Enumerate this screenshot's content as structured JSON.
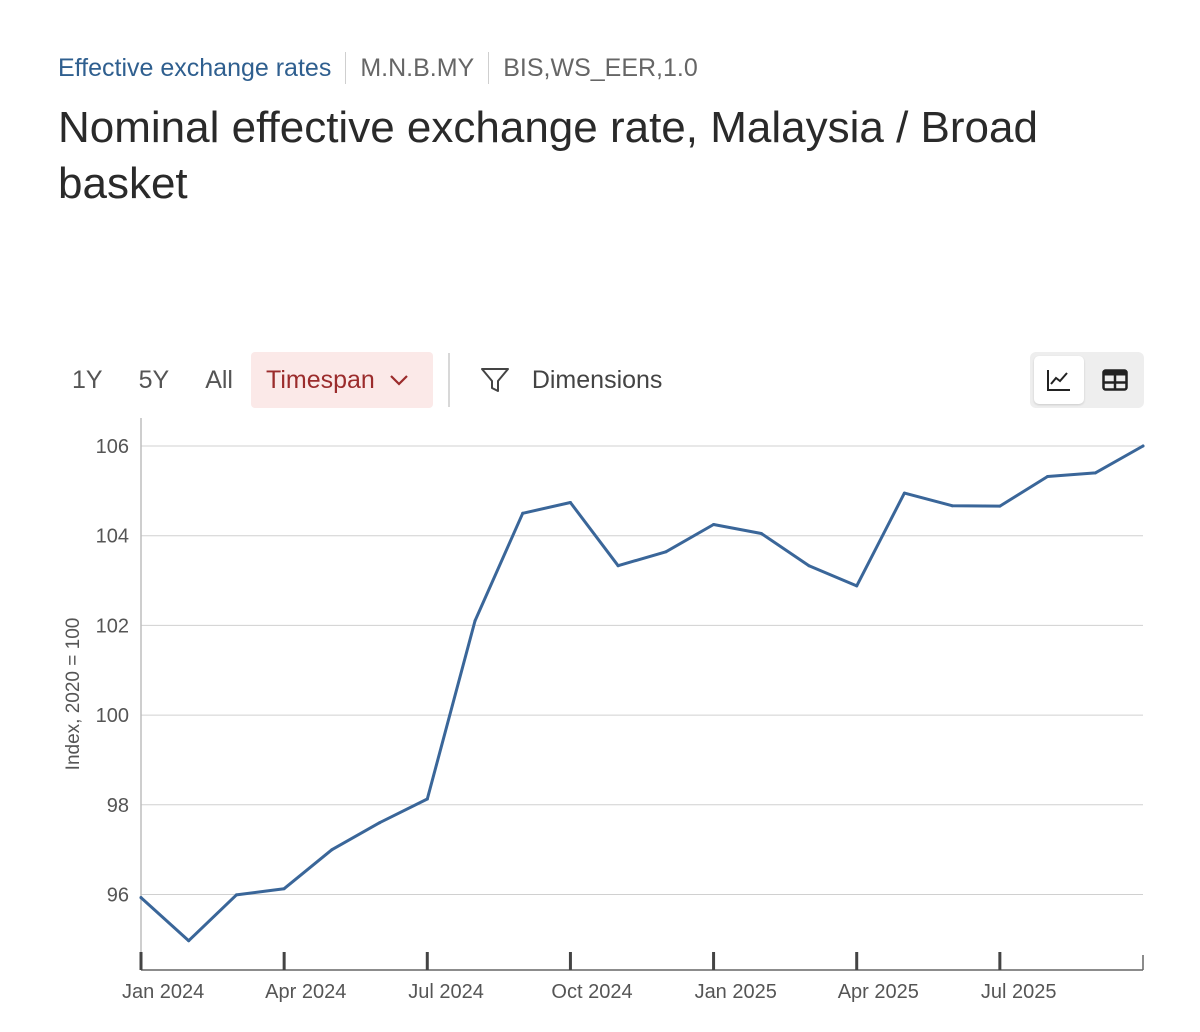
{
  "breadcrumb": {
    "dataset": "Effective exchange rates",
    "series_key": "M.N.B.MY",
    "dataflow": "BIS,WS_EER,1.0"
  },
  "title": "Nominal effective exchange rate, Malaysia / Broad basket",
  "toolbar": {
    "ranges": [
      "1Y",
      "5Y",
      "All"
    ],
    "timespan_label": "Timespan",
    "dimensions_label": "Dimensions",
    "active_view": "chart"
  },
  "icons": {
    "timespan": "chevron-down-icon",
    "dimensions": "filter-icon",
    "chart_view": "line-chart-icon",
    "table_view": "table-icon"
  },
  "colors": {
    "accent": "#2f5f8f",
    "line": "#3a6699",
    "timespan_bg": "#fbe9e8",
    "timespan_text": "#9b2c2c",
    "grid": "#d0d0d0"
  },
  "chart_data": {
    "type": "line",
    "title": "",
    "xlabel": "",
    "ylabel": "Index, 2020 = 100",
    "ylim": [
      94.5,
      106
    ],
    "yticks": [
      96,
      98,
      100,
      102,
      104,
      106
    ],
    "xticks": [
      {
        "label": "Jan 2024",
        "date": "2024-01"
      },
      {
        "label": "Apr 2024",
        "date": "2024-04"
      },
      {
        "label": "Jul 2024",
        "date": "2024-07"
      },
      {
        "label": "Oct 2024",
        "date": "2024-10"
      },
      {
        "label": "Jan 2025",
        "date": "2025-01"
      },
      {
        "label": "Apr 2025",
        "date": "2025-04"
      },
      {
        "label": "Jul 2025",
        "date": "2025-07"
      }
    ],
    "x_range": [
      "2024-01",
      "2025-10"
    ],
    "grid": true,
    "legend": "none",
    "series": [
      {
        "x": [
          "2024-01",
          "2024-02",
          "2024-03",
          "2024-04",
          "2024-05",
          "2024-06",
          "2024-07",
          "2024-08",
          "2024-09",
          "2024-10",
          "2024-11",
          "2024-12",
          "2025-01",
          "2025-02",
          "2025-03",
          "2025-04",
          "2025-05",
          "2025-06",
          "2025-07",
          "2025-08",
          "2025-09",
          "2025-10"
        ],
        "values": [
          95.93,
          94.97,
          95.99,
          96.13,
          97.0,
          97.6,
          98.13,
          102.1,
          104.5,
          104.74,
          103.33,
          103.64,
          104.25,
          104.05,
          103.33,
          102.88,
          104.95,
          104.67,
          104.66,
          105.32,
          105.4,
          106.0
        ]
      }
    ]
  }
}
